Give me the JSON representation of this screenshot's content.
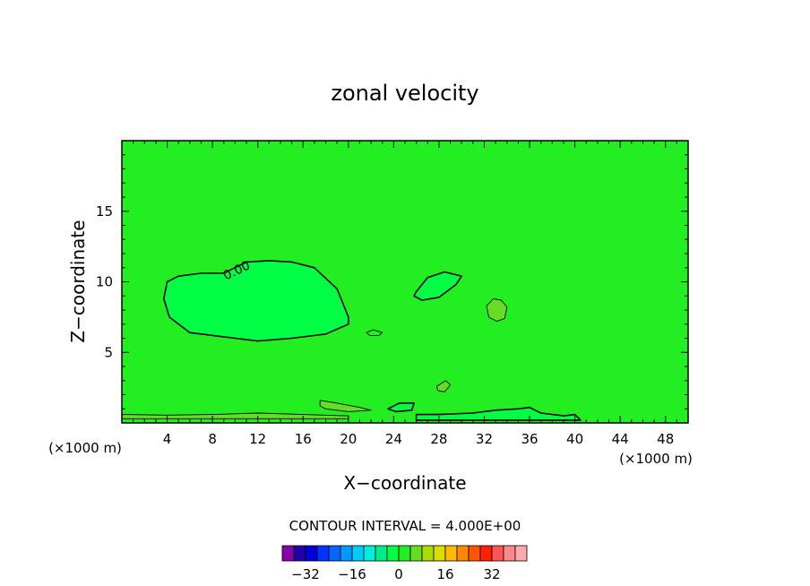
{
  "chart_data": {
    "type": "contour",
    "title": "zonal velocity",
    "xlabel": "X−coordinate",
    "ylabel": "Z−coordinate",
    "x_unit_left": "(×1000 m)",
    "x_unit_right": "(×1000 m)",
    "xlim": [
      0,
      50
    ],
    "ylim": [
      0,
      20
    ],
    "x_ticks": [
      "4",
      "8",
      "12",
      "16",
      "20",
      "24",
      "28",
      "32",
      "36",
      "40",
      "44",
      "48"
    ],
    "x_tick_values": [
      4,
      8,
      12,
      16,
      20,
      24,
      28,
      32,
      36,
      40,
      44,
      48
    ],
    "y_ticks": [
      "5",
      "10",
      "15"
    ],
    "y_tick_values": [
      5,
      10,
      15
    ],
    "contour_label": "0.00",
    "contour_interval_text": "CONTOUR INTERVAL = 4.000E+00",
    "background_value_color": "#22ee22",
    "features": [
      {
        "name": "negative-region-left",
        "level": -4,
        "color": "#00ff44",
        "points": [
          [
            4,
            10
          ],
          [
            5,
            10.4
          ],
          [
            7,
            10.6
          ],
          [
            9,
            10.6
          ],
          [
            11,
            11.4
          ],
          [
            13,
            11.5
          ],
          [
            15,
            11.4
          ],
          [
            17,
            11
          ],
          [
            19,
            9.5
          ],
          [
            20,
            7.5
          ],
          [
            20,
            7
          ],
          [
            18,
            6.3
          ],
          [
            15,
            6
          ],
          [
            12,
            5.8
          ],
          [
            9,
            6.1
          ],
          [
            6,
            6.4
          ],
          [
            4.2,
            7.5
          ],
          [
            3.7,
            8.8
          ]
        ]
      },
      {
        "name": "negative-region-mid",
        "level": -4,
        "color": "#00ff44",
        "points": [
          [
            26,
            9.3
          ],
          [
            27,
            10.3
          ],
          [
            28.5,
            10.7
          ],
          [
            30,
            10.4
          ],
          [
            29.5,
            9.8
          ],
          [
            28,
            8.9
          ],
          [
            26.5,
            8.7
          ],
          [
            25.8,
            9
          ]
        ]
      },
      {
        "name": "positive-blob-32",
        "level": 4,
        "color": "#66dd22",
        "points": [
          [
            32.2,
            8.3
          ],
          [
            32.8,
            8.8
          ],
          [
            33.5,
            8.7
          ],
          [
            34,
            8.2
          ],
          [
            33.8,
            7.4
          ],
          [
            33.1,
            7.2
          ],
          [
            32.4,
            7.5
          ]
        ]
      },
      {
        "name": "small-loop-22",
        "level": 0,
        "color": "#22ee22",
        "points": [
          [
            21.6,
            6.4
          ],
          [
            22.2,
            6.6
          ],
          [
            23,
            6.4
          ],
          [
            22.7,
            6.2
          ],
          [
            21.9,
            6.2
          ]
        ]
      },
      {
        "name": "surface-strip-left",
        "level": 4,
        "color": "#66dd22",
        "points": [
          [
            0,
            0.6
          ],
          [
            4,
            0.55
          ],
          [
            8,
            0.6
          ],
          [
            12,
            0.7
          ],
          [
            16,
            0.6
          ],
          [
            20,
            0.5
          ],
          [
            20,
            0.3
          ],
          [
            0,
            0.3
          ]
        ]
      },
      {
        "name": "surface-strip-19",
        "level": 4,
        "color": "#66dd22",
        "points": [
          [
            17.5,
            1.6
          ],
          [
            19,
            1.4
          ],
          [
            21,
            1.1
          ],
          [
            22,
            0.9
          ],
          [
            20,
            0.8
          ],
          [
            18,
            1.0
          ],
          [
            17.5,
            1.2
          ]
        ]
      },
      {
        "name": "surface-loop-24",
        "level": -4,
        "color": "#00ff44",
        "points": [
          [
            23.5,
            1.0
          ],
          [
            24.5,
            1.4
          ],
          [
            25.8,
            1.4
          ],
          [
            25.6,
            0.9
          ],
          [
            24.2,
            0.8
          ]
        ]
      },
      {
        "name": "surface-strip-right",
        "level": -4,
        "color": "#00ff44",
        "points": [
          [
            26,
            0.6
          ],
          [
            28,
            0.6
          ],
          [
            31,
            0.7
          ],
          [
            33,
            0.9
          ],
          [
            35,
            1.0
          ],
          [
            36,
            1.1
          ],
          [
            37,
            0.7
          ],
          [
            39,
            0.5
          ],
          [
            40,
            0.6
          ],
          [
            40.5,
            0.2
          ],
          [
            26,
            0.2
          ]
        ]
      },
      {
        "name": "small-blob-28",
        "level": 4,
        "color": "#66dd22",
        "points": [
          [
            27.8,
            2.6
          ],
          [
            28.6,
            3
          ],
          [
            29,
            2.7
          ],
          [
            28.5,
            2.2
          ],
          [
            27.9,
            2.3
          ]
        ]
      }
    ],
    "colorbar": {
      "labels": [
        "−32",
        "−16",
        "0",
        "16",
        "32"
      ],
      "label_values": [
        -32,
        -16,
        0,
        16,
        32
      ],
      "colors": [
        "#8800aa",
        "#2200aa",
        "#0000dd",
        "#0033ff",
        "#0066ff",
        "#0099ff",
        "#00ccff",
        "#00eedd",
        "#00ee88",
        "#00ff44",
        "#22ee22",
        "#66dd22",
        "#aadd00",
        "#dddd00",
        "#ffbb00",
        "#ff8800",
        "#ff5500",
        "#ff2200",
        "#ff5555",
        "#ff8888",
        "#ffaaaa"
      ],
      "min": -40,
      "max": 44
    }
  }
}
